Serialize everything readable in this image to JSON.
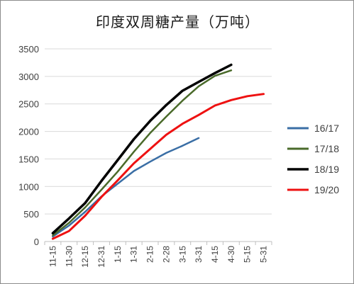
{
  "chart_data": {
    "type": "line",
    "title": "印度双周糖产量（万吨）",
    "xlabel": "",
    "ylabel": "",
    "categories": [
      "11-15",
      "11-30",
      "12-15",
      "12-31",
      "1-15",
      "1-31",
      "2-15",
      "2-28",
      "3-15",
      "3-31",
      "4-15",
      "4-30",
      "5-15",
      "5-31"
    ],
    "ylim": [
      0,
      3500
    ],
    "yticks": [
      0,
      500,
      1000,
      1500,
      2000,
      2500,
      3000,
      3500
    ],
    "grid": true,
    "legend_position": "right",
    "series": [
      {
        "name": "16/17",
        "color": "#3a6ea5",
        "values": [
          90,
          290,
          540,
          820,
          1050,
          1280,
          1450,
          1610,
          1740,
          1880,
          null,
          null,
          null,
          null
        ]
      },
      {
        "name": "17/18",
        "color": "#4a6a2a",
        "values": [
          110,
          340,
          620,
          940,
          1270,
          1630,
          1970,
          2270,
          2560,
          2820,
          3010,
          3110,
          null,
          null
        ]
      },
      {
        "name": "18/19",
        "color": "#000000",
        "values": [
          150,
          420,
          700,
          1100,
          1480,
          1860,
          2190,
          2480,
          2740,
          2900,
          3060,
          3210,
          null,
          null
        ]
      },
      {
        "name": "19/20",
        "color": "#ee1111",
        "values": [
          50,
          190,
          470,
          810,
          1110,
          1420,
          1680,
          1940,
          2140,
          2300,
          2470,
          2570,
          2640,
          2680
        ]
      }
    ]
  }
}
